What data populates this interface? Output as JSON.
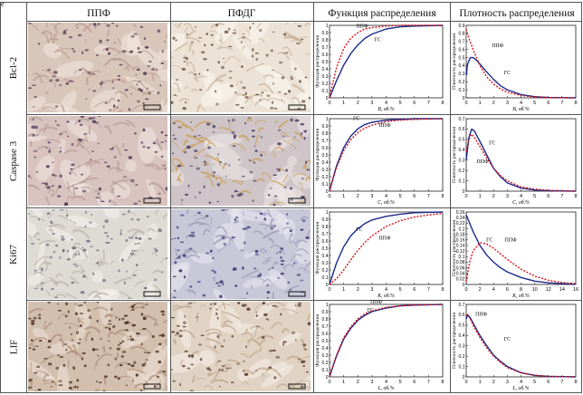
{
  "panel_letter": "e",
  "headers": {
    "col1": "ППФ",
    "col2": "ПФДГ",
    "col3": "Функция распределения",
    "col4": "Плотность распределения"
  },
  "rows": [
    {
      "marker": "Bcl-2",
      "cdf_ylabel": "Функция распределения",
      "pdf_ylabel": "Плотность распределения",
      "cdf_xlabel": "B, об.%",
      "pdf_xlabel": "B, об.%",
      "cdf_labels": [
        "ППФ",
        "ГС"
      ],
      "pdf_labels": [
        "ППФ",
        "ГС"
      ]
    },
    {
      "marker": "Caspase 3",
      "cdf_ylabel": "Функция распределения",
      "pdf_ylabel": "Плотность распределения",
      "cdf_xlabel": "C, об.%",
      "pdf_xlabel": "C, об.%",
      "cdf_labels": [
        "ГС",
        "ППФ"
      ],
      "pdf_labels": [
        "ГС",
        "ППФ"
      ]
    },
    {
      "marker": "Ki67",
      "cdf_ylabel": "Функция распределения",
      "pdf_ylabel": "Плотность распределения",
      "cdf_xlabel": "K, об.%",
      "pdf_xlabel": "K, об.%",
      "cdf_labels": [
        "ГС",
        "ППФ"
      ],
      "pdf_labels": [
        "ГС",
        "ППФ"
      ]
    },
    {
      "marker": "LIF",
      "cdf_ylabel": "Функция распределения",
      "pdf_ylabel": "Плотность распределения",
      "cdf_xlabel": "L, об.%",
      "pdf_xlabel": "L, об.%",
      "cdf_labels": [
        "ГС",
        "ППФ"
      ],
      "pdf_labels": [
        "ППФ",
        "ГС"
      ]
    }
  ],
  "colors": {
    "gs": "#1a2a8c",
    "ppf": "#d0141c"
  },
  "chart_data": [
    {
      "id": "bcl2-cdf",
      "type": "line",
      "xlim": [
        0,
        8
      ],
      "ylim": [
        0,
        1.0
      ],
      "xticks": [
        0,
        1,
        2,
        3,
        4,
        5,
        6,
        7,
        8
      ],
      "yticks": [
        0,
        0.1,
        0.2,
        0.3,
        0.4,
        0.5,
        0.6,
        0.7,
        0.8,
        0.9,
        1.0
      ],
      "series": [
        {
          "name": "ГС",
          "x": [
            0,
            0.25,
            0.5,
            1,
            1.5,
            2,
            2.5,
            3,
            4,
            5,
            6,
            8
          ],
          "y": [
            0,
            0.12,
            0.24,
            0.45,
            0.61,
            0.73,
            0.82,
            0.88,
            0.95,
            0.98,
            0.99,
            1.0
          ]
        },
        {
          "name": "ППФ",
          "x": [
            0,
            0.25,
            0.5,
            1,
            1.5,
            2,
            2.5,
            3,
            4,
            5,
            6,
            8
          ],
          "y": [
            0,
            0.22,
            0.42,
            0.68,
            0.82,
            0.9,
            0.95,
            0.97,
            0.99,
            1.0,
            1.0,
            1.0
          ]
        }
      ]
    },
    {
      "id": "bcl2-pdf",
      "type": "line",
      "xlim": [
        0,
        8
      ],
      "ylim": [
        0,
        0.9
      ],
      "xticks": [
        0,
        1,
        2,
        3,
        4,
        5,
        6,
        7,
        8
      ],
      "yticks": [
        0,
        0.1,
        0.2,
        0.3,
        0.4,
        0.5,
        0.6,
        0.7,
        0.8,
        0.9
      ],
      "series": [
        {
          "name": "ГС",
          "x": [
            0,
            0.1,
            0.3,
            0.5,
            0.8,
            1,
            1.5,
            2,
            2.5,
            3,
            4,
            5,
            6,
            8
          ],
          "y": [
            0.28,
            0.42,
            0.5,
            0.5,
            0.46,
            0.42,
            0.32,
            0.23,
            0.15,
            0.1,
            0.04,
            0.015,
            0.005,
            0
          ]
        },
        {
          "name": "ППФ",
          "x": [
            0,
            0.2,
            0.5,
            1,
            1.5,
            2,
            2.5,
            3,
            4,
            5,
            6,
            8
          ],
          "y": [
            0.85,
            0.74,
            0.6,
            0.4,
            0.26,
            0.17,
            0.11,
            0.07,
            0.03,
            0.01,
            0.004,
            0
          ]
        }
      ]
    },
    {
      "id": "casp3-cdf",
      "type": "line",
      "xlim": [
        0,
        8
      ],
      "ylim": [
        0,
        1.0
      ],
      "xticks": [
        0,
        1,
        2,
        3,
        4,
        5,
        6,
        7,
        8
      ],
      "yticks": [
        0,
        0.1,
        0.2,
        0.3,
        0.4,
        0.5,
        0.6,
        0.7,
        0.8,
        0.9,
        1.0
      ],
      "series": [
        {
          "name": "ГС",
          "x": [
            0,
            0.25,
            0.5,
            1,
            1.5,
            2,
            2.5,
            3,
            4,
            5,
            6,
            8
          ],
          "y": [
            0,
            0.18,
            0.35,
            0.6,
            0.76,
            0.86,
            0.92,
            0.95,
            0.98,
            0.99,
            1.0,
            1.0
          ]
        },
        {
          "name": "ППФ",
          "x": [
            0,
            0.25,
            0.5,
            1,
            1.5,
            2,
            2.5,
            3,
            4,
            5,
            6,
            8
          ],
          "y": [
            0,
            0.17,
            0.33,
            0.56,
            0.71,
            0.81,
            0.87,
            0.91,
            0.96,
            0.98,
            0.99,
            1.0
          ]
        }
      ]
    },
    {
      "id": "casp3-pdf",
      "type": "line",
      "xlim": [
        0,
        8
      ],
      "ylim": [
        0,
        0.7
      ],
      "xticks": [
        0,
        1,
        2,
        3,
        4,
        5,
        6,
        7,
        8
      ],
      "yticks": [
        0,
        0.1,
        0.2,
        0.3,
        0.4,
        0.5,
        0.6,
        0.7
      ],
      "series": [
        {
          "name": "ГС",
          "x": [
            0,
            0.2,
            0.4,
            0.6,
            1,
            1.5,
            2,
            2.5,
            3,
            4,
            5,
            6,
            8
          ],
          "y": [
            0.3,
            0.52,
            0.6,
            0.58,
            0.48,
            0.35,
            0.22,
            0.14,
            0.08,
            0.03,
            0.01,
            0.004,
            0
          ]
        },
        {
          "name": "ППФ",
          "x": [
            0,
            0.2,
            0.4,
            0.6,
            1,
            1.5,
            2,
            2.5,
            3,
            4,
            5,
            6,
            8
          ],
          "y": [
            0.38,
            0.5,
            0.55,
            0.52,
            0.43,
            0.32,
            0.22,
            0.15,
            0.1,
            0.04,
            0.02,
            0.008,
            0
          ]
        }
      ]
    },
    {
      "id": "ki67-cdf",
      "type": "line",
      "xlim": [
        0,
        8
      ],
      "ylim": [
        0,
        1.0
      ],
      "xticks": [
        0,
        1,
        2,
        3,
        4,
        5,
        6,
        7,
        8
      ],
      "yticks": [
        0,
        0.1,
        0.2,
        0.3,
        0.4,
        0.5,
        0.6,
        0.7,
        0.8,
        0.9,
        1.0
      ],
      "series": [
        {
          "name": "ГС",
          "x": [
            0,
            0.25,
            0.5,
            1,
            1.5,
            2,
            2.5,
            3,
            4,
            5,
            6,
            8
          ],
          "y": [
            0,
            0.15,
            0.3,
            0.52,
            0.67,
            0.77,
            0.84,
            0.89,
            0.94,
            0.97,
            0.99,
            1.0
          ]
        },
        {
          "name": "ППФ",
          "x": [
            0,
            0.5,
            1,
            1.5,
            2,
            2.5,
            3,
            4,
            5,
            6,
            7,
            8
          ],
          "y": [
            0,
            0.08,
            0.2,
            0.34,
            0.47,
            0.58,
            0.67,
            0.8,
            0.88,
            0.93,
            0.96,
            0.98
          ]
        }
      ]
    },
    {
      "id": "ki67-pdf",
      "type": "line",
      "xlim": [
        0,
        16
      ],
      "ylim": [
        0,
        0.26
      ],
      "xticks": [
        0,
        2,
        4,
        6,
        8,
        10,
        12,
        14,
        16
      ],
      "yticks": [
        0,
        0.02,
        0.04,
        0.06,
        0.08,
        0.1,
        0.12,
        0.14,
        0.16,
        0.18,
        0.2,
        0.22,
        0.24,
        0.26
      ],
      "series": [
        {
          "name": "ГС",
          "x": [
            0,
            1,
            2,
            3,
            4,
            5,
            6,
            8,
            10,
            12,
            14,
            16
          ],
          "y": [
            0.25,
            0.19,
            0.14,
            0.105,
            0.08,
            0.06,
            0.045,
            0.025,
            0.012,
            0.006,
            0.003,
            0.001
          ]
        },
        {
          "name": "ППФ",
          "x": [
            0,
            0.5,
            1,
            2,
            3,
            4,
            5,
            6,
            8,
            10,
            12,
            14,
            16
          ],
          "y": [
            0.01,
            0.08,
            0.12,
            0.15,
            0.145,
            0.13,
            0.11,
            0.09,
            0.055,
            0.03,
            0.015,
            0.007,
            0.003
          ]
        }
      ]
    },
    {
      "id": "lif-cdf",
      "type": "line",
      "xlim": [
        0,
        8
      ],
      "ylim": [
        0,
        1.0
      ],
      "xticks": [
        0,
        1,
        2,
        3,
        4,
        5,
        6,
        7,
        8
      ],
      "yticks": [
        0,
        0.1,
        0.2,
        0.3,
        0.4,
        0.5,
        0.6,
        0.7,
        0.8,
        0.9,
        1.0
      ],
      "series": [
        {
          "name": "ГС",
          "x": [
            0,
            0.25,
            0.5,
            1,
            1.5,
            2,
            2.5,
            3,
            4,
            5,
            6,
            8
          ],
          "y": [
            0,
            0.15,
            0.29,
            0.52,
            0.67,
            0.78,
            0.85,
            0.9,
            0.95,
            0.98,
            0.99,
            1.0
          ]
        },
        {
          "name": "ППФ",
          "x": [
            0,
            0.25,
            0.5,
            1,
            1.5,
            2,
            2.5,
            3,
            4,
            5,
            6,
            8
          ],
          "y": [
            0,
            0.16,
            0.3,
            0.54,
            0.69,
            0.8,
            0.87,
            0.91,
            0.96,
            0.98,
            0.99,
            1.0
          ]
        }
      ]
    },
    {
      "id": "lif-pdf",
      "type": "line",
      "xlim": [
        0,
        8
      ],
      "ylim": [
        0,
        0.7
      ],
      "xticks": [
        0,
        1,
        2,
        3,
        4,
        5,
        6,
        7,
        8
      ],
      "yticks": [
        0,
        0.1,
        0.2,
        0.3,
        0.4,
        0.5,
        0.6,
        0.7
      ],
      "series": [
        {
          "name": "ГС",
          "x": [
            0,
            0.1,
            0.3,
            0.5,
            1,
            1.5,
            2,
            2.5,
            3,
            4,
            5,
            6,
            8
          ],
          "y": [
            0.56,
            0.6,
            0.57,
            0.52,
            0.4,
            0.3,
            0.21,
            0.15,
            0.1,
            0.04,
            0.015,
            0.005,
            0
          ]
        },
        {
          "name": "ППФ",
          "x": [
            0,
            0.1,
            0.3,
            0.5,
            1,
            1.5,
            2,
            2.5,
            3,
            4,
            5,
            6,
            8
          ],
          "y": [
            0.6,
            0.6,
            0.56,
            0.5,
            0.38,
            0.28,
            0.2,
            0.14,
            0.09,
            0.04,
            0.015,
            0.005,
            0
          ]
        }
      ]
    }
  ]
}
